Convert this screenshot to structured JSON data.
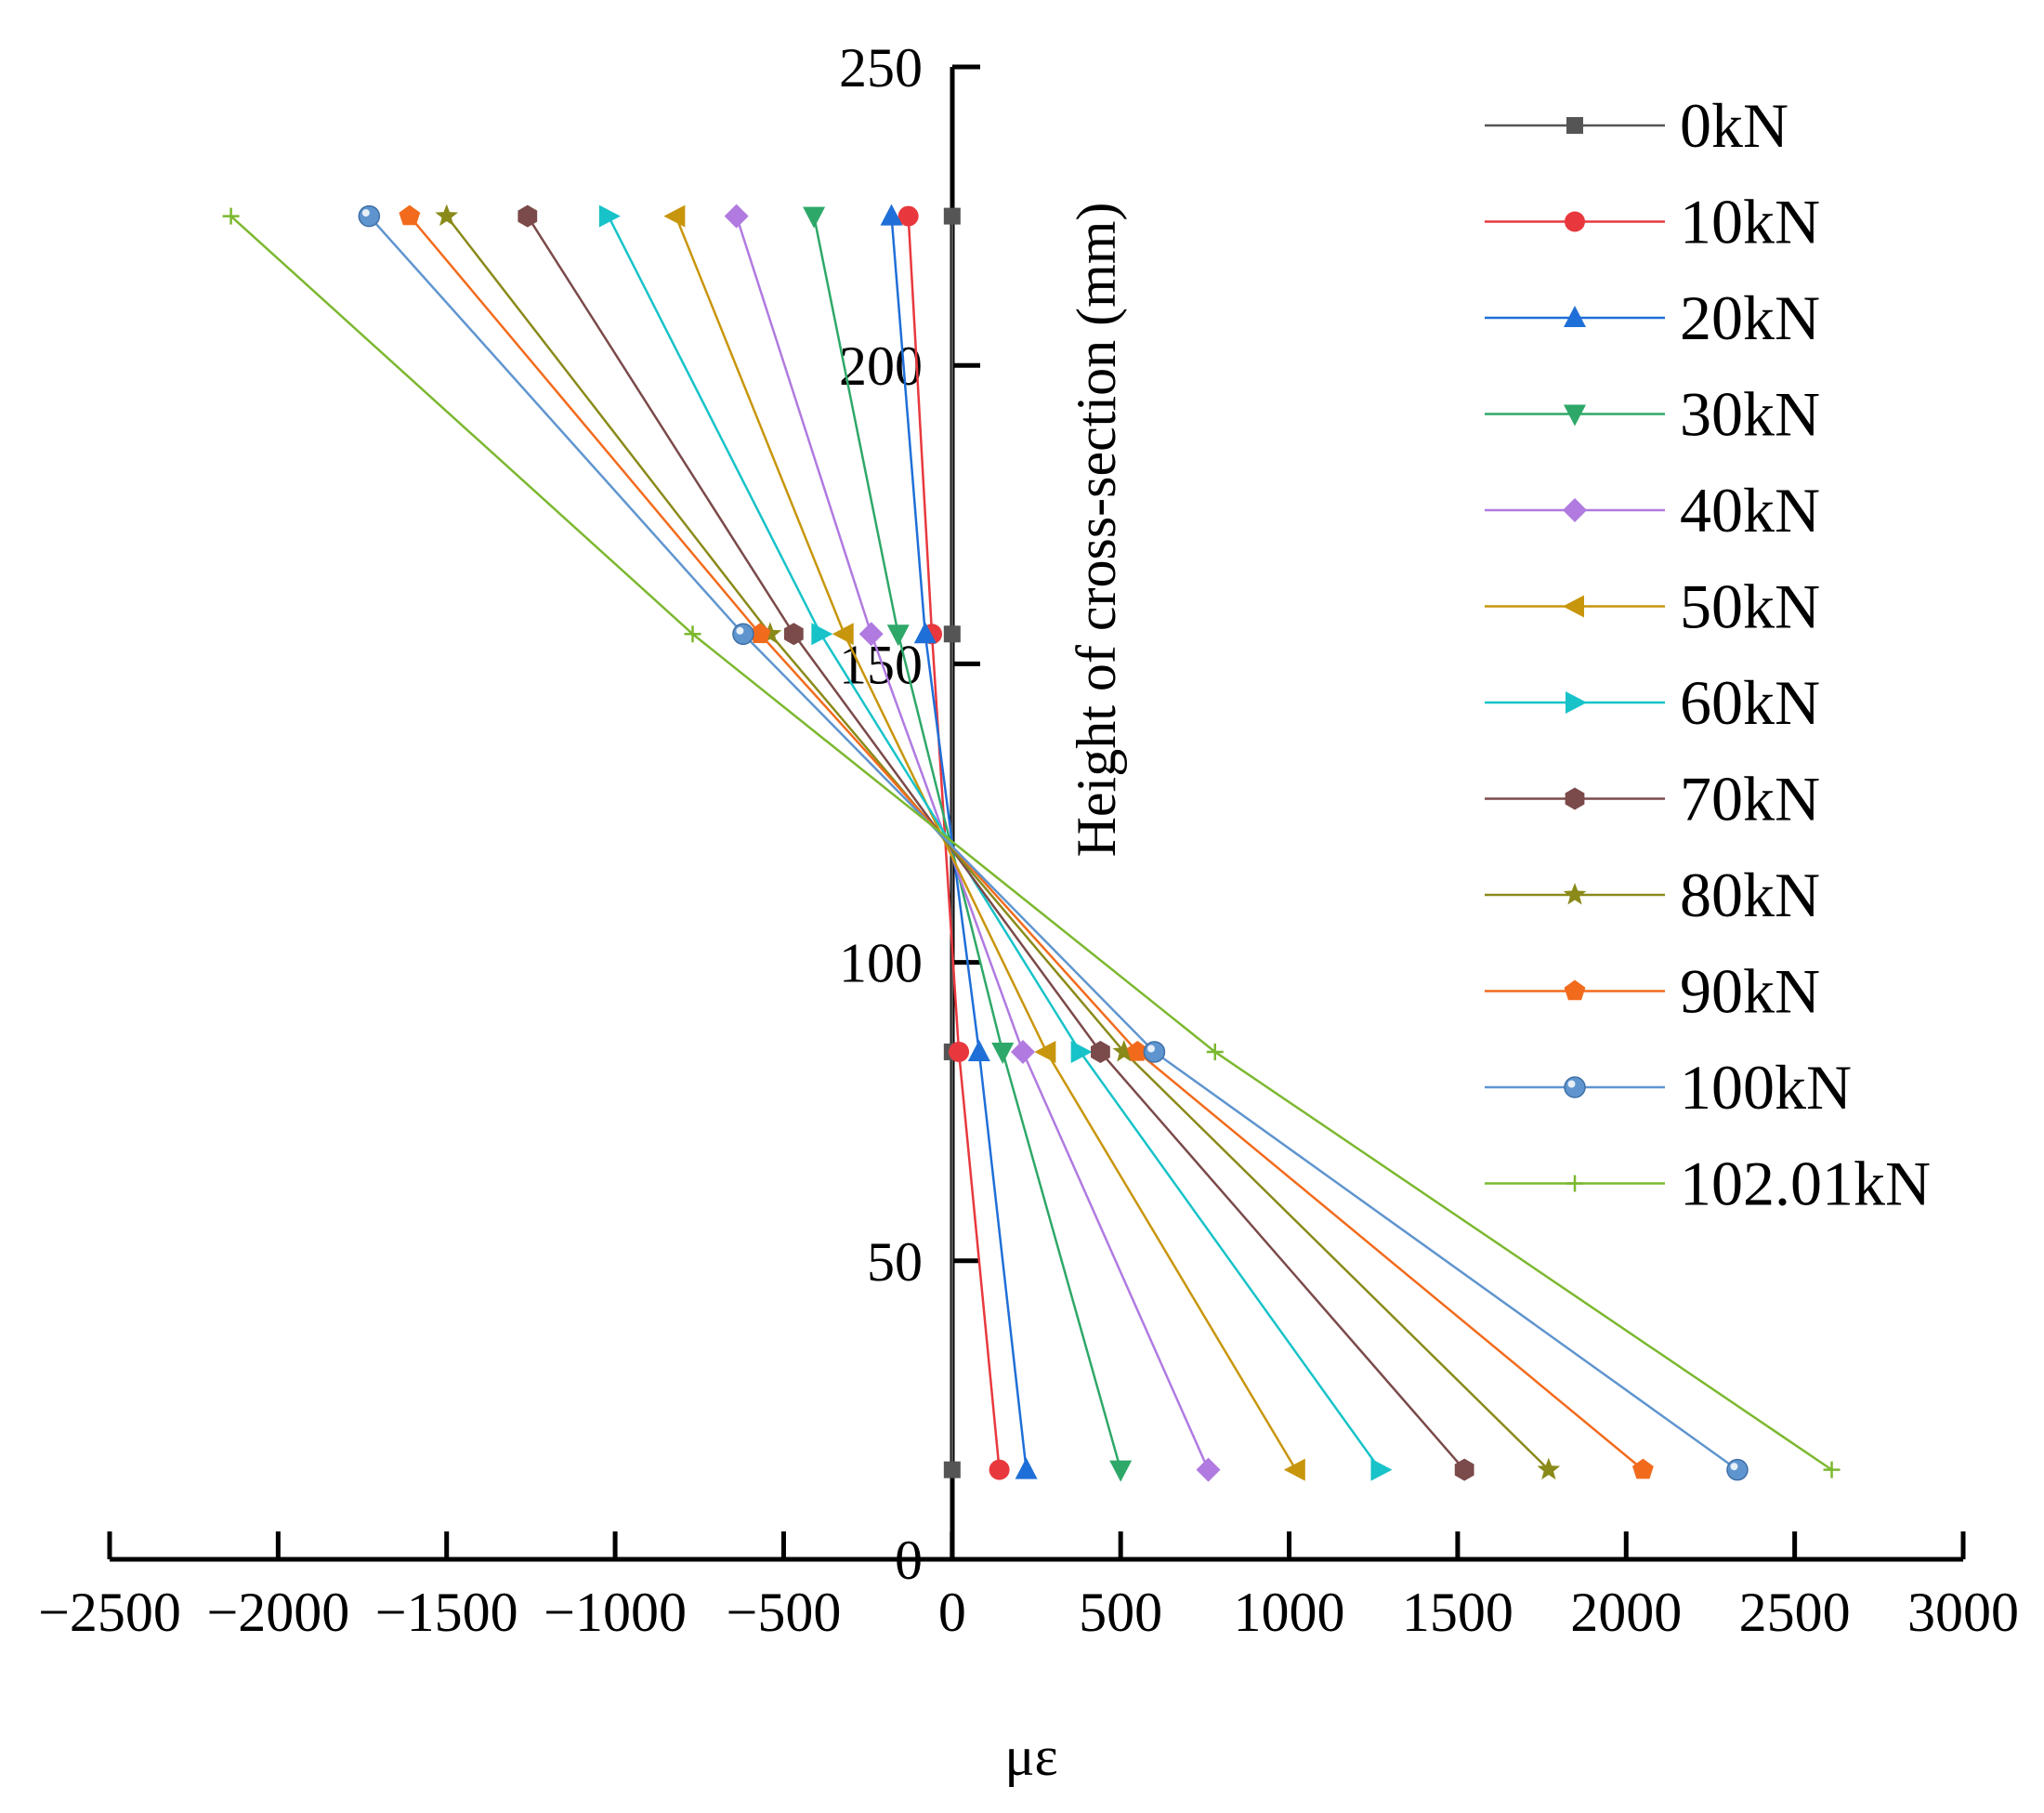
{
  "chart_data": {
    "type": "line",
    "title": "",
    "xlabel": "με",
    "ylabel": "Height of cross-section (mm)",
    "xlim": [
      -2500,
      3000
    ],
    "ylim": [
      0,
      250
    ],
    "x_ticks": [
      -2500,
      -2000,
      -1500,
      -1000,
      -500,
      0,
      500,
      1000,
      1500,
      2000,
      2500,
      3000
    ],
    "x_tick_labels": [
      "−2500",
      "−2000",
      "−1500",
      "−1000",
      "−500",
      "0",
      "500",
      "1000",
      "1500",
      "2000",
      "2500",
      "3000"
    ],
    "y_ticks": [
      0,
      50,
      100,
      150,
      200,
      250
    ],
    "y_tick_labels": [
      "0",
      "50",
      "100",
      "150",
      "200",
      "250"
    ],
    "grid": false,
    "legend_position": "right",
    "heights": [
      225,
      155,
      85,
      15
    ],
    "series": [
      {
        "name": "0kN",
        "color": "#555555",
        "marker": "square",
        "x": [
          0,
          0,
          0,
          0
        ],
        "y": [
          225,
          155,
          85,
          15
        ]
      },
      {
        "name": "10kN",
        "color": "#e8383d",
        "marker": "circle",
        "x": [
          -130,
          -60,
          20,
          140
        ],
        "y": [
          225,
          155,
          85,
          15
        ]
      },
      {
        "name": "20kN",
        "color": "#1f6fd8",
        "marker": "triangle-up",
        "x": [
          -180,
          -80,
          80,
          220
        ],
        "y": [
          225,
          155,
          85,
          15
        ]
      },
      {
        "name": "30kN",
        "color": "#2ea868",
        "marker": "triangle-down",
        "x": [
          -410,
          -160,
          150,
          500
        ],
        "y": [
          225,
          155,
          85,
          15
        ]
      },
      {
        "name": "40kN",
        "color": "#b07ae0",
        "marker": "diamond",
        "x": [
          -640,
          -240,
          210,
          760
        ],
        "y": [
          225,
          155,
          85,
          15
        ]
      },
      {
        "name": "50kN",
        "color": "#c8960c",
        "marker": "triangle-left",
        "x": [
          -820,
          -320,
          280,
          1020
        ],
        "y": [
          225,
          155,
          85,
          15
        ]
      },
      {
        "name": "60kN",
        "color": "#17c3c9",
        "marker": "triangle-right",
        "x": [
          -1020,
          -390,
          380,
          1270
        ],
        "y": [
          225,
          155,
          85,
          15
        ]
      },
      {
        "name": "70kN",
        "color": "#7b4a4a",
        "marker": "hexagon",
        "x": [
          -1260,
          -470,
          440,
          1520
        ],
        "y": [
          225,
          155,
          85,
          15
        ]
      },
      {
        "name": "80kN",
        "color": "#8a8a1a",
        "marker": "star",
        "x": [
          -1500,
          -540,
          510,
          1770
        ],
        "y": [
          225,
          155,
          85,
          15
        ]
      },
      {
        "name": "90kN",
        "color": "#f26b1d",
        "marker": "pentagon",
        "x": [
          -1610,
          -570,
          550,
          2050
        ],
        "y": [
          225,
          155,
          85,
          15
        ]
      },
      {
        "name": "100kN",
        "color": "#5f95cf",
        "marker": "sphere",
        "x": [
          -1730,
          -620,
          600,
          2330
        ],
        "y": [
          225,
          155,
          85,
          15
        ]
      },
      {
        "name": "102.01kN",
        "color": "#7cb82f",
        "marker": "plus",
        "x": [
          -2140,
          -770,
          780,
          2610
        ],
        "y": [
          225,
          155,
          85,
          15
        ]
      }
    ]
  }
}
